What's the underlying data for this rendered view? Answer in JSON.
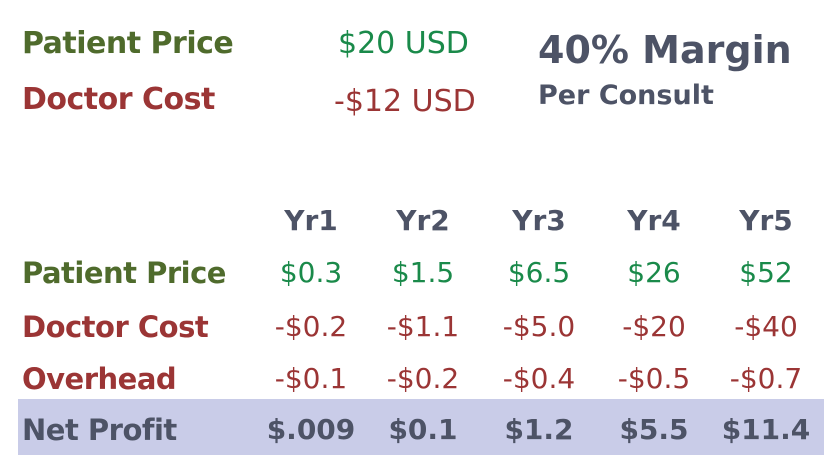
{
  "summary": {
    "patient_price_label": "Patient Price",
    "patient_price_value": "$20 USD",
    "doctor_cost_label": "Doctor Cost",
    "doctor_cost_value": "-$12 USD",
    "margin_title": "40% Margin",
    "margin_subtitle": "Per Consult"
  },
  "table": {
    "headers": [
      "Yr1",
      "Yr2",
      "Yr3",
      "Yr4",
      "Yr5"
    ],
    "rows": [
      {
        "label": "Patient Price",
        "values": [
          "$0.3",
          "$1.5",
          "$6.5",
          "$26",
          "$52"
        ]
      },
      {
        "label": "Doctor Cost",
        "values": [
          "-$0.2",
          "-$1.1",
          "-$5.0",
          "-$20",
          "-$40"
        ]
      },
      {
        "label": "Overhead",
        "values": [
          "-$0.1",
          "-$0.2",
          "-$0.4",
          "-$0.5",
          "-$0.7"
        ]
      },
      {
        "label": "Net Profit",
        "values": [
          "$.009",
          "$0.1",
          "$1.2",
          "$5.5",
          "$11.4"
        ]
      }
    ]
  },
  "colors": {
    "patient_label": "#4f6b2c",
    "positive_value": "#1a8a4a",
    "negative": "#9b3535",
    "slate": "#4d5366",
    "net_band": "#c9cce8"
  }
}
